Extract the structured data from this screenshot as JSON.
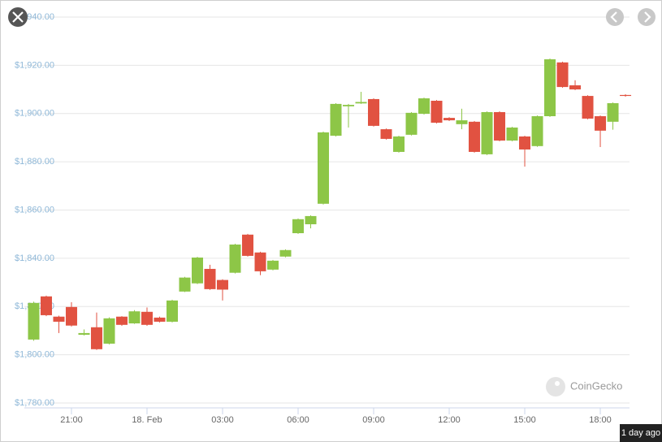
{
  "chart_data": {
    "type": "candlestick",
    "x": [
      19.5,
      20,
      20.5,
      21,
      21.5,
      22,
      22.5,
      23,
      23.5,
      24,
      24.5,
      25,
      25.5,
      26,
      26.5,
      27,
      27.5,
      28,
      28.5,
      29,
      29.5,
      30,
      30.5,
      31,
      31.5,
      32,
      32.5,
      33,
      33.5,
      34,
      34.5,
      35,
      35.5,
      36,
      36.5,
      37,
      37.5,
      38,
      38.5,
      39,
      39.5,
      40,
      40.5,
      41,
      41.5,
      42,
      42.5,
      43
    ],
    "open": [
      1806.3,
      1824.2,
      1815.8,
      1819.8,
      1808.3,
      1811.4,
      1804.6,
      1815.8,
      1813,
      1817.8,
      1815.4,
      1813.7,
      1826.2,
      1829.6,
      1835.6,
      1831,
      1834,
      1849.8,
      1842.4,
      1835.3,
      1840.7,
      1850.4,
      1854.1,
      1862.6,
      1890.8,
      1903,
      1904.2,
      1906,
      1893.5,
      1884.1,
      1891.2,
      1899.9,
      1905.3,
      1898.2,
      1895.6,
      1896.6,
      1883.1,
      1900.6,
      1888.8,
      1890.5,
      1886.5,
      1898.9,
      1921.2,
      1911.7,
      1907.3,
      1898.9,
      1896.6,
      1907.7
    ],
    "high": [
      1822,
      1824.5,
      1816.2,
      1821.8,
      1810.5,
      1817.5,
      1815.5,
      1816,
      1818.5,
      1819.6,
      1815.8,
      1822.8,
      1832.3,
      1840.6,
      1837.3,
      1831.3,
      1846,
      1850.1,
      1842.7,
      1839.3,
      1843.7,
      1856.5,
      1857.8,
      1892.5,
      1904.3,
      1904,
      1909,
      1906.3,
      1893.8,
      1890.8,
      1900.6,
      1906.6,
      1905.6,
      1898.5,
      1902,
      1896.9,
      1900.9,
      1900.9,
      1894.5,
      1890.8,
      1899.2,
      1922.8,
      1921.5,
      1913.8,
      1907.6,
      1899.2,
      1904.6,
      1908
    ],
    "low": [
      1805.8,
      1816,
      1809,
      1811.7,
      1808,
      1802,
      1804.3,
      1812,
      1812.8,
      1812,
      1813.4,
      1813.4,
      1826,
      1829.3,
      1826.9,
      1822.5,
      1833.7,
      1840.7,
      1833,
      1835,
      1840.4,
      1850.1,
      1852.4,
      1862.3,
      1890.5,
      1894.2,
      1904,
      1894.6,
      1889.2,
      1883.8,
      1890.9,
      1899.6,
      1895.9,
      1896.9,
      1893.5,
      1883.8,
      1882.8,
      1888.5,
      1888.5,
      1878,
      1886.2,
      1898.6,
      1910.7,
      1909.7,
      1897.6,
      1886.1,
      1893.3,
      1907
    ],
    "close": [
      1821.5,
      1816.4,
      1813.7,
      1812.1,
      1809,
      1802.3,
      1815.1,
      1812.4,
      1818,
      1812.4,
      1813.7,
      1822.5,
      1832,
      1840.3,
      1827.2,
      1827,
      1845.7,
      1841,
      1834.6,
      1839,
      1843.4,
      1856.2,
      1857.5,
      1892.2,
      1904,
      1903.6,
      1904.8,
      1894.9,
      1889.5,
      1890.5,
      1900.3,
      1906.3,
      1896.2,
      1897.2,
      1897.2,
      1884.1,
      1900.6,
      1888.8,
      1894.2,
      1885.1,
      1898.9,
      1922.5,
      1911,
      1910,
      1897.9,
      1892.9,
      1904.3,
      1907.3
    ],
    "up_color": "#8dc647",
    "down_color": "#e15241",
    "xlim": [
      19.13,
      43.16
    ],
    "xticks": [
      {
        "value": 21,
        "label": "21:00"
      },
      {
        "value": 24,
        "label": "18. Feb"
      },
      {
        "value": 27,
        "label": "03:00"
      },
      {
        "value": 30,
        "label": "06:00"
      },
      {
        "value": 33,
        "label": "09:00"
      },
      {
        "value": 36,
        "label": "12:00"
      },
      {
        "value": 39,
        "label": "15:00"
      },
      {
        "value": 42,
        "label": "18:00"
      }
    ],
    "ylim": [
      1780,
      1940
    ],
    "yticks": [
      {
        "value": 1780,
        "label": "$1,780.00"
      },
      {
        "value": 1800,
        "label": "$1,800.00"
      },
      {
        "value": 1820,
        "label": "$1,820.00"
      },
      {
        "value": 1840,
        "label": "$1,840.00"
      },
      {
        "value": 1860,
        "label": "$1,860.00"
      },
      {
        "value": 1880,
        "label": "$1,880.00"
      },
      {
        "value": 1900,
        "label": "$1,900.00"
      },
      {
        "value": 1920,
        "label": "$1,920.00"
      },
      {
        "value": 1940,
        "label": "$1,940.00"
      }
    ],
    "grid": true,
    "watermark": "CoinGecko"
  },
  "ui": {
    "time_label": "1 day ago"
  }
}
